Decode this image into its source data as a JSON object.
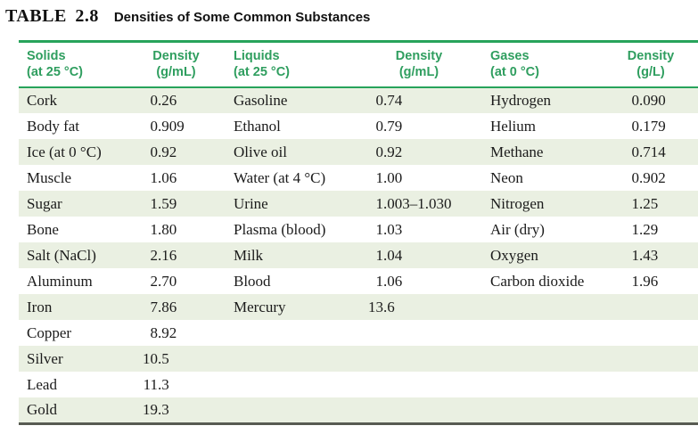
{
  "page": {
    "label": "TABLE 2.8",
    "title": "Densities of Some Common Substances"
  },
  "table": {
    "headers": [
      {
        "l1": "Solids",
        "l2": "(at 25 °C)"
      },
      {
        "l1": "Density",
        "l2": "(g/mL)"
      },
      {
        "l1": "Liquids",
        "l2": "(at 25 °C)"
      },
      {
        "l1": "Density",
        "l2": "(g/mL)"
      },
      {
        "l1": "Gases",
        "l2": "(at 0 °C)"
      },
      {
        "l1": "Density",
        "l2": "(g/L)"
      }
    ],
    "solids": [
      {
        "name": "Cork",
        "density": "0.26"
      },
      {
        "name": "Body fat",
        "density": "0.909"
      },
      {
        "name": "Ice (at 0 °C)",
        "density": "0.92"
      },
      {
        "name": "Muscle",
        "density": "1.06"
      },
      {
        "name": "Sugar",
        "density": "1.59"
      },
      {
        "name": "Bone",
        "density": "1.80"
      },
      {
        "name": "Salt (NaCl)",
        "density": "2.16"
      },
      {
        "name": "Aluminum",
        "density": "2.70"
      },
      {
        "name": "Iron",
        "density": "7.86"
      },
      {
        "name": "Copper",
        "density": "8.92"
      },
      {
        "name": "Silver",
        "density": "10.5"
      },
      {
        "name": "Lead",
        "density": "11.3"
      },
      {
        "name": "Gold",
        "density": "19.3"
      }
    ],
    "liquids": [
      {
        "name": "Gasoline",
        "density": "0.74"
      },
      {
        "name": "Ethanol",
        "density": "0.79"
      },
      {
        "name": "Olive oil",
        "density": "0.92"
      },
      {
        "name": "Water (at 4 °C)",
        "density": "1.00"
      },
      {
        "name": "Urine",
        "density": "1.003–1.030"
      },
      {
        "name": "Plasma (blood)",
        "density": "1.03"
      },
      {
        "name": "Milk",
        "density": "1.04"
      },
      {
        "name": "Blood",
        "density": "1.06"
      },
      {
        "name": "Mercury",
        "density": "13.6"
      }
    ],
    "gases": [
      {
        "name": "Hydrogen",
        "density": "0.090"
      },
      {
        "name": "Helium",
        "density": "0.179"
      },
      {
        "name": "Methane",
        "density": "0.714"
      },
      {
        "name": "Neon",
        "density": "0.902"
      },
      {
        "name": "Nitrogen",
        "density": "1.25"
      },
      {
        "name": "Air (dry)",
        "density": "1.29"
      },
      {
        "name": "Oxygen",
        "density": "1.43"
      },
      {
        "name": "Carbon dioxide",
        "density": "1.96"
      }
    ]
  },
  "colors": {
    "accent_green": "#27a35b",
    "header_text_green": "#2f9e5f",
    "row_stripe": "#eaf0e2",
    "bottom_rule": "#585b52",
    "body_text": "#1b1b1b"
  }
}
